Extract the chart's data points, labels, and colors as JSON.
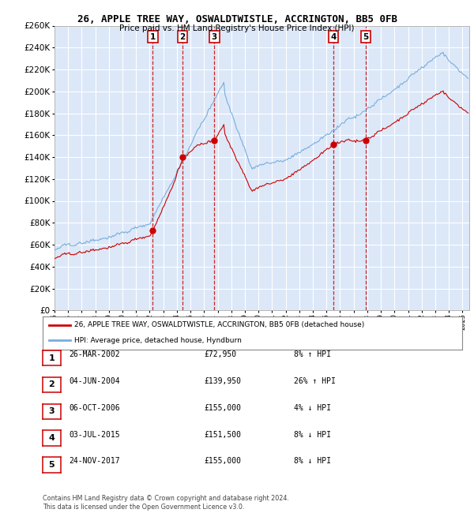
{
  "title": "26, APPLE TREE WAY, OSWALDTWISTLE, ACCRINGTON, BB5 0FB",
  "subtitle": "Price paid vs. HM Land Registry's House Price Index (HPI)",
  "ylim": [
    0,
    260000
  ],
  "yticks": [
    0,
    20000,
    40000,
    60000,
    80000,
    100000,
    120000,
    140000,
    160000,
    180000,
    200000,
    220000,
    240000,
    260000
  ],
  "xlim_start": 1995.0,
  "xlim_end": 2025.5,
  "background_color": "#dce8f8",
  "grid_color": "#ffffff",
  "sale_points": [
    {
      "num": 1,
      "decimal": 2002.23,
      "price": 72950
    },
    {
      "num": 2,
      "decimal": 2004.42,
      "price": 139950
    },
    {
      "num": 3,
      "decimal": 2006.76,
      "price": 155000
    },
    {
      "num": 4,
      "decimal": 2015.5,
      "price": 151500
    },
    {
      "num": 5,
      "decimal": 2017.89,
      "price": 155000
    }
  ],
  "red_color": "#cc0000",
  "blue_color": "#7aaddc",
  "legend_label_red": "26, APPLE TREE WAY, OSWALDTWISTLE, ACCRINGTON, BB5 0FB (detached house)",
  "legend_label_blue": "HPI: Average price, detached house, Hyndburn",
  "table_rows": [
    {
      "num": 1,
      "date": "26-MAR-2002",
      "price": "£72,950",
      "hpi": "8% ↑ HPI"
    },
    {
      "num": 2,
      "date": "04-JUN-2004",
      "price": "£139,950",
      "hpi": "26% ↑ HPI"
    },
    {
      "num": 3,
      "date": "06-OCT-2006",
      "price": "£155,000",
      "hpi": "4% ↓ HPI"
    },
    {
      "num": 4,
      "date": "03-JUL-2015",
      "price": "£151,500",
      "hpi": "8% ↓ HPI"
    },
    {
      "num": 5,
      "date": "24-NOV-2017",
      "price": "£155,000",
      "hpi": "8% ↓ HPI"
    }
  ],
  "footer": "Contains HM Land Registry data © Crown copyright and database right 2024.\nThis data is licensed under the Open Government Licence v3.0."
}
